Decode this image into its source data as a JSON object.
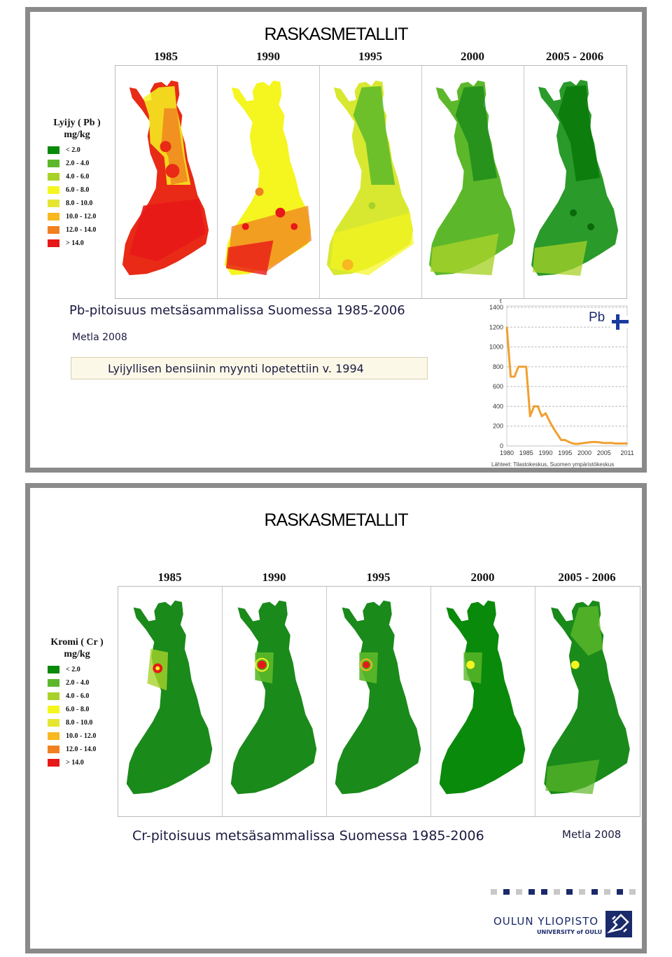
{
  "slide1": {
    "title": "RASKASMETALLIT",
    "years": [
      "1985",
      "1990",
      "1995",
      "2000",
      "2005 - 2006"
    ],
    "legend": {
      "title_line1": "Lyijy ( Pb )",
      "title_line2": "mg/kg",
      "items": [
        {
          "label": "< 2.0",
          "color": "#0a8a0a"
        },
        {
          "label": "2.0 - 4.0",
          "color": "#5cb82a"
        },
        {
          "label": "4.0 - 6.0",
          "color": "#a8d22a"
        },
        {
          "label": "6.0 - 8.0",
          "color": "#f5f520"
        },
        {
          "label": "8.0 - 10.0",
          "color": "#e6e632"
        },
        {
          "label": "10.0 - 12.0",
          "color": "#f8b820"
        },
        {
          "label": "12.0 - 14.0",
          "color": "#f08020"
        },
        {
          "label": "> 14.0",
          "color": "#e81818"
        }
      ]
    },
    "caption": "Pb-pitoisuus metsäsammalissa Suomessa 1985-2006",
    "source": "Metla 2008",
    "note": "Lyijyllisen bensiinin myynti lopetettiin v. 1994",
    "chart_data": {
      "type": "line",
      "title": "Pb",
      "ylabel": "t",
      "x_ticks": [
        "1980",
        "1985",
        "1990",
        "1995",
        "2000",
        "2005",
        "2011"
      ],
      "y_ticks": [
        "0",
        "200",
        "400",
        "600",
        "800",
        "1000",
        "1200",
        "1400"
      ],
      "ylim": [
        0,
        1400
      ],
      "xlim": [
        1980,
        2011
      ],
      "series": [
        {
          "color": "#f0a030",
          "x": [
            1980,
            1981,
            1982,
            1983,
            1984,
            1985,
            1986,
            1987,
            1988,
            1989,
            1990,
            1991,
            1992,
            1993,
            1994,
            1995,
            1996,
            1997,
            1998,
            1999,
            2000,
            2001,
            2002,
            2003,
            2004,
            2005,
            2006,
            2007,
            2008,
            2009,
            2010,
            2011
          ],
          "y": [
            1200,
            700,
            700,
            800,
            800,
            800,
            300,
            400,
            400,
            300,
            330,
            250,
            180,
            120,
            60,
            60,
            40,
            25,
            20,
            25,
            30,
            35,
            40,
            40,
            35,
            30,
            30,
            30,
            25,
            25,
            25,
            25
          ]
        }
      ],
      "source_text": "Lähteet: Tilastokeskus, Suomen ympäristökeskus"
    }
  },
  "slide2": {
    "title": "RASKASMETALLIT",
    "years": [
      "1985",
      "1990",
      "1995",
      "2000",
      "2005 - 2006"
    ],
    "legend": {
      "title_line1": "Kromi ( Cr )",
      "title_line2": "mg/kg",
      "items": [
        {
          "label": "< 2.0",
          "color": "#0a8a0a"
        },
        {
          "label": "2.0 - 4.0",
          "color": "#5cb82a"
        },
        {
          "label": "4.0 - 6.0",
          "color": "#a8d22a"
        },
        {
          "label": "6.0 - 8.0",
          "color": "#f5f520"
        },
        {
          "label": "8.0 - 10.0",
          "color": "#e6e632"
        },
        {
          "label": "10.0 - 12.0",
          "color": "#f8b820"
        },
        {
          "label": "12.0 - 14.0",
          "color": "#f08020"
        },
        {
          "label": "> 14.0",
          "color": "#e81818"
        }
      ]
    },
    "caption": "Cr-pitoisuus metsäsammalissa Suomessa 1985-2006",
    "source": "Metla 2008",
    "logo": {
      "name": "OULUN YLIOPISTO",
      "sub": "UNIVERSITY of OULU"
    }
  }
}
